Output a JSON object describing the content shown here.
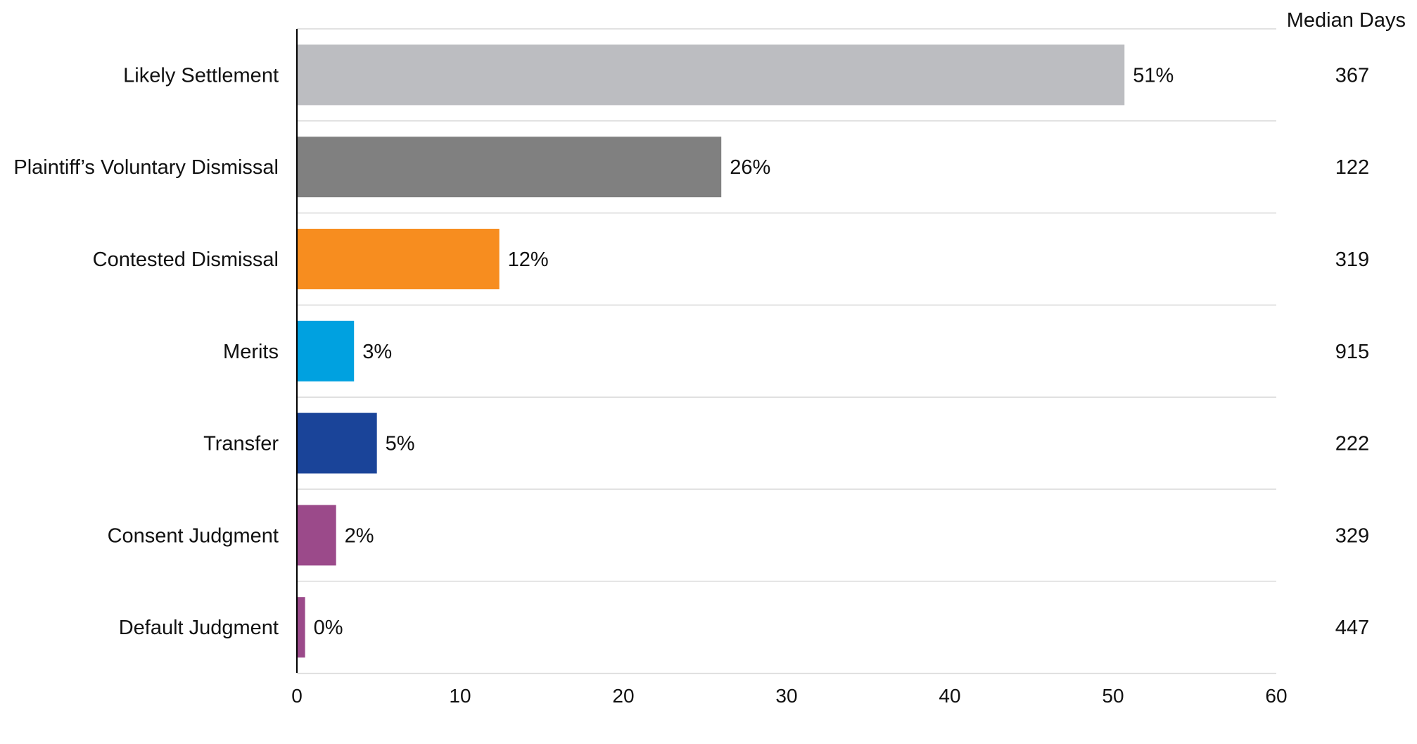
{
  "chart_data": {
    "type": "bar",
    "orientation": "horizontal",
    "categories": [
      "Likely Settlement",
      "Plaintiff’s Voluntary Dismissal",
      "Contested Dismissal",
      "Merits",
      "Transfer",
      "Consent Judgment",
      "Default Judgment"
    ],
    "values": [
      50.7,
      26,
      12.4,
      3.5,
      4.9,
      2.4,
      0.5
    ],
    "value_labels": [
      "51%",
      "26%",
      "12%",
      "3%",
      "5%",
      "2%",
      "0%"
    ],
    "colors": [
      "#bcbdc1",
      "#808080",
      "#f78d1f",
      "#00a1e0",
      "#1a4499",
      "#9b4a8a",
      "#9b4a8a"
    ],
    "median_days_header": "Median Days",
    "median_days": [
      "367",
      "122",
      "319",
      "915",
      "222",
      "329",
      "447"
    ],
    "xlim": [
      0,
      60
    ],
    "x_ticks": [
      "0",
      "10",
      "20",
      "30",
      "40",
      "50",
      "60"
    ],
    "x_tick_values": [
      0,
      10,
      20,
      30,
      40,
      50,
      60
    ],
    "grid": "horizontal row separators",
    "title": "",
    "xlabel": "",
    "ylabel": ""
  }
}
